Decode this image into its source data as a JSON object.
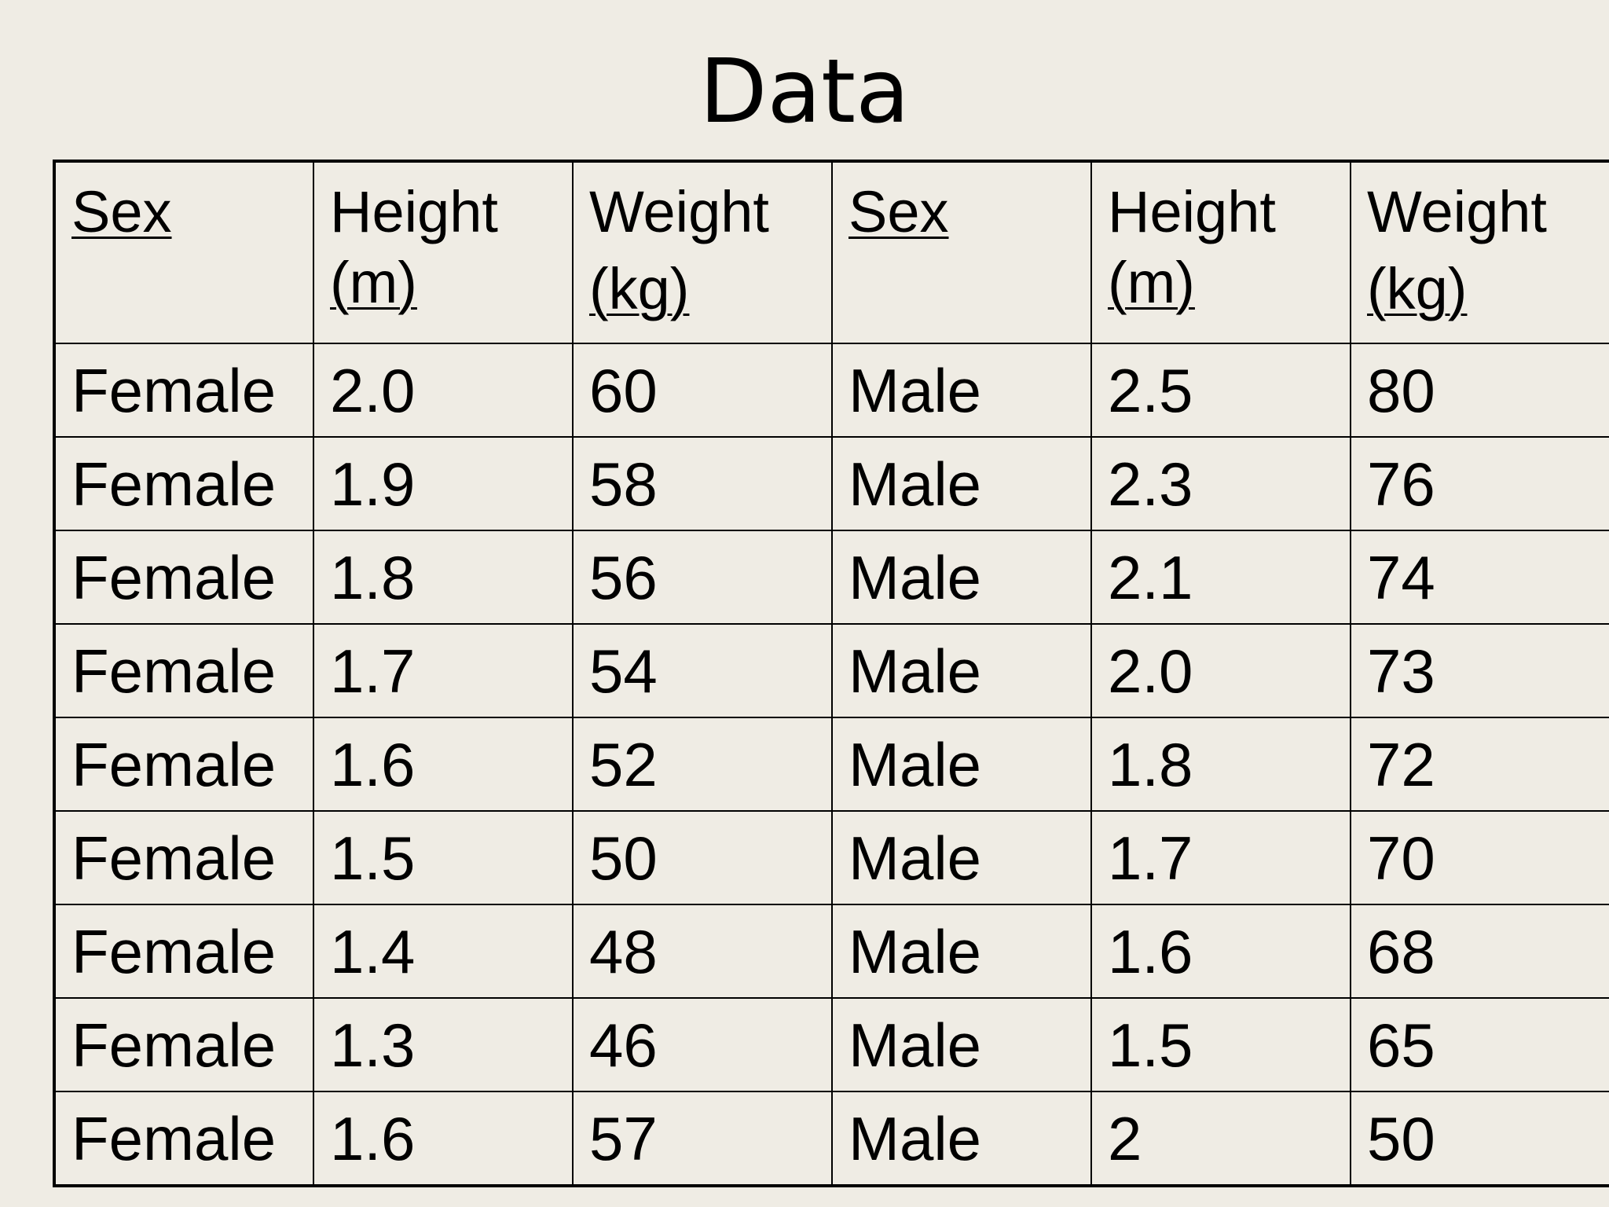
{
  "title": "Data",
  "chart_data": {
    "type": "table",
    "header": [
      {
        "line1": "Sex",
        "line2": "",
        "underline": "line1"
      },
      {
        "line1": "Height",
        "line2": "(m)",
        "underline": "line2"
      },
      {
        "line1": "Weight",
        "line2": "(kg)",
        "underline": "line2"
      },
      {
        "line1": "Sex",
        "line2": "",
        "underline": "line1"
      },
      {
        "line1": "Height",
        "line2": "(m)",
        "underline": "line2"
      },
      {
        "line1": "Weight",
        "line2": "(kg)",
        "underline": "line2"
      }
    ],
    "rows": [
      [
        "Female",
        "2.0",
        "60",
        "Male",
        "2.5",
        "80"
      ],
      [
        "Female",
        "1.9",
        "58",
        "Male",
        "2.3",
        "76"
      ],
      [
        "Female",
        "1.8",
        "56",
        "Male",
        "2.1",
        "74"
      ],
      [
        "Female",
        "1.7",
        "54",
        "Male",
        "2.0",
        "73"
      ],
      [
        "Female",
        "1.6",
        "52",
        "Male",
        "1.8",
        "72"
      ],
      [
        "Female",
        "1.5",
        "50",
        "Male",
        "1.7",
        "70"
      ],
      [
        "Female",
        "1.4",
        "48",
        "Male",
        "1.6",
        "68"
      ],
      [
        "Female",
        "1.3",
        "46",
        "Male",
        "1.5",
        "65"
      ],
      [
        "Female",
        "1.6",
        "57",
        "Male",
        "2",
        "50"
      ]
    ]
  }
}
